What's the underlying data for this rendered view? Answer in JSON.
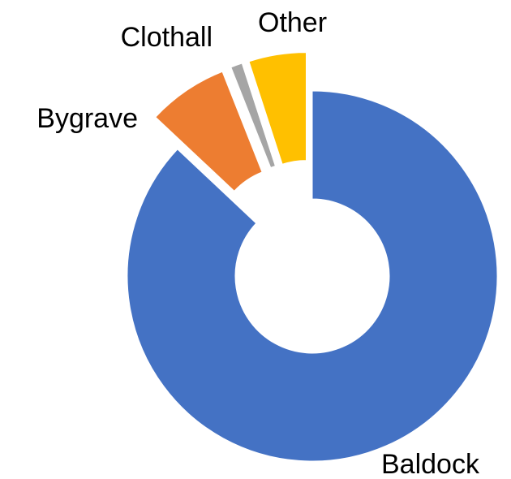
{
  "chart_data": {
    "type": "donut",
    "categories": [
      "Baldock",
      "Bygrave",
      "Clothall",
      "Other"
    ],
    "values": [
      87,
      7,
      1,
      5
    ],
    "colors": [
      "#4472c4",
      "#ed7d31",
      "#a5a5a5",
      "#ffc000"
    ],
    "exploded": [
      false,
      true,
      true,
      true
    ]
  }
}
